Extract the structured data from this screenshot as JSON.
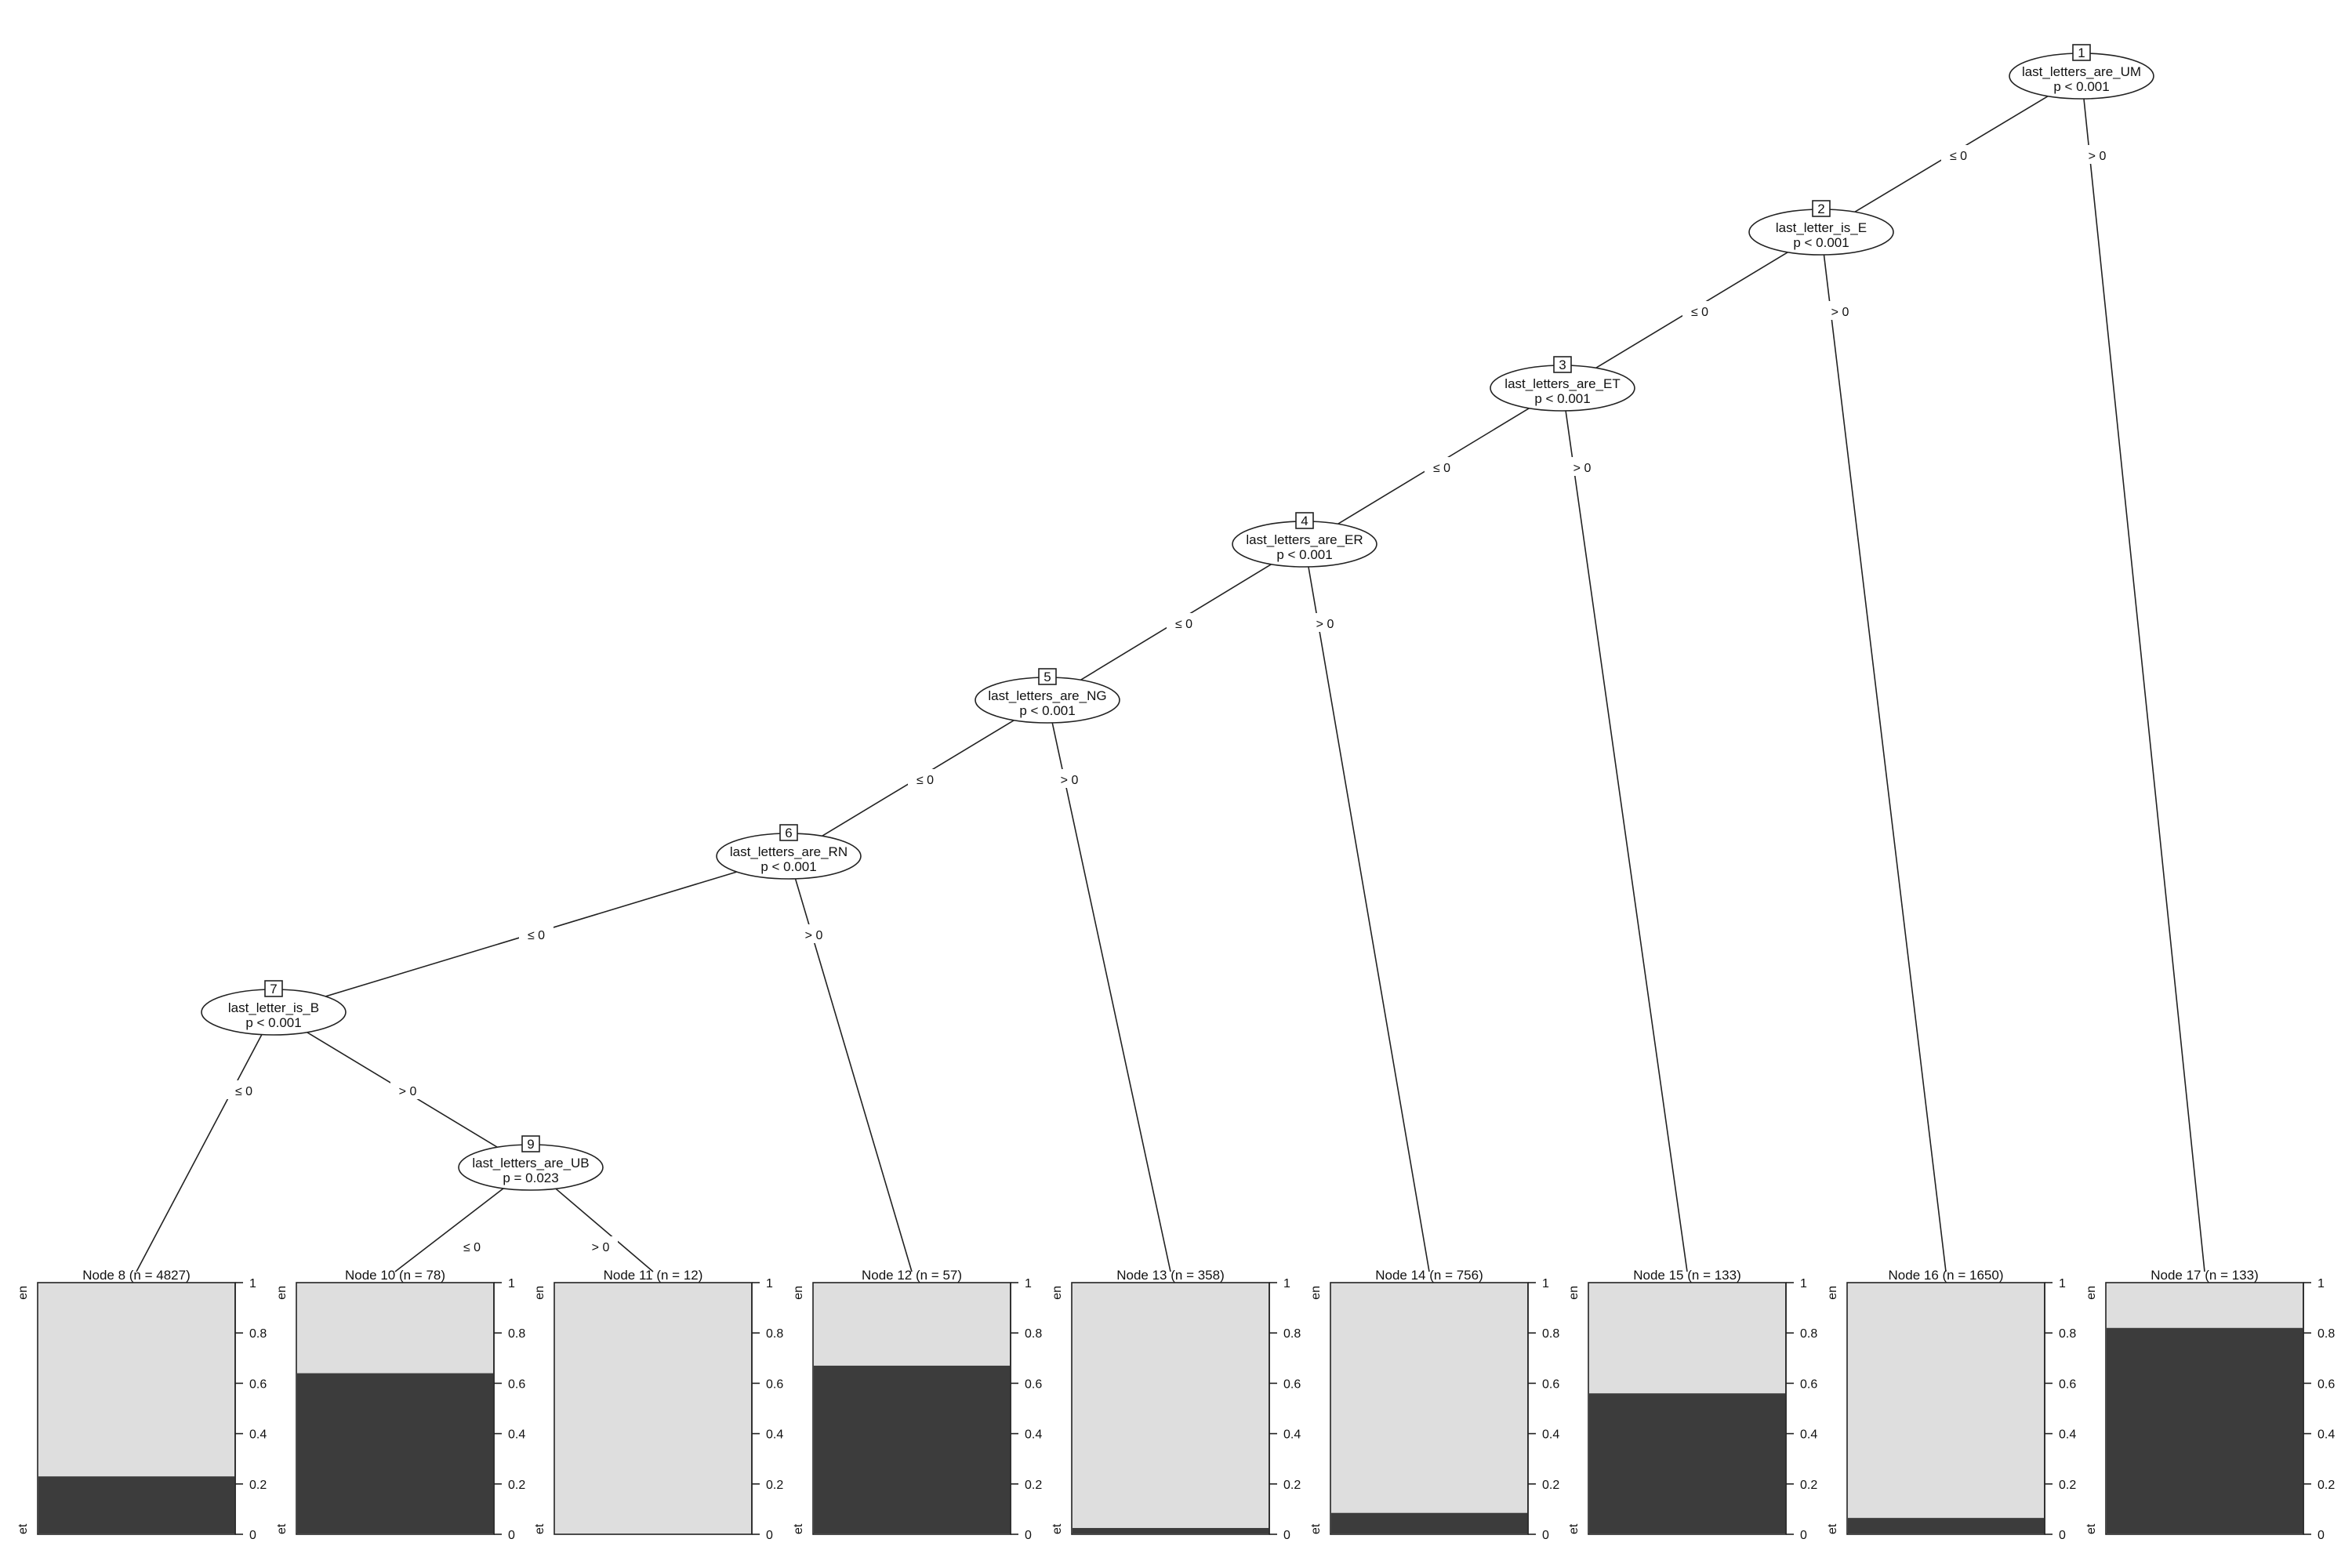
{
  "inner_nodes": [
    {
      "id": "1",
      "variable": "last_letters_are_UM",
      "p": "p < 0.001"
    },
    {
      "id": "2",
      "variable": "last_letter_is_E",
      "p": "p < 0.001"
    },
    {
      "id": "3",
      "variable": "last_letters_are_ET",
      "p": "p < 0.001"
    },
    {
      "id": "4",
      "variable": "last_letters_are_ER",
      "p": "p < 0.001"
    },
    {
      "id": "5",
      "variable": "last_letters_are_NG",
      "p": "p < 0.001"
    },
    {
      "id": "6",
      "variable": "last_letters_are_RN",
      "p": "p < 0.001"
    },
    {
      "id": "7",
      "variable": "last_letter_is_B",
      "p": "p < 0.001"
    },
    {
      "id": "9",
      "variable": "last_letters_are_UB",
      "p": "p = 0.023"
    }
  ],
  "edge_labels": {
    "le": "≤ 0",
    "gt": "> 0"
  },
  "terminal_nodes": [
    {
      "title": "Node 8 (n = 4827)",
      "et_fraction": 0.23
    },
    {
      "title": "Node 10 (n = 78)",
      "et_fraction": 0.64
    },
    {
      "title": "Node 11 (n = 12)",
      "et_fraction": 0.0
    },
    {
      "title": "Node 12 (n = 57)",
      "et_fraction": 0.67
    },
    {
      "title": "Node 13 (n = 358)",
      "et_fraction": 0.025
    },
    {
      "title": "Node 14 (n = 756)",
      "et_fraction": 0.085
    },
    {
      "title": "Node 15 (n = 133)",
      "et_fraction": 0.56
    },
    {
      "title": "Node 16 (n = 1650)",
      "et_fraction": 0.065
    },
    {
      "title": "Node 17 (n = 133)",
      "et_fraction": 0.82
    }
  ],
  "class_labels": {
    "top": "en",
    "bottom": "et"
  },
  "axis_ticks": [
    "0",
    "0.2",
    "0.4",
    "0.6",
    "0.8",
    "1"
  ],
  "colors": {
    "et": "#3c3c3c",
    "en": "#dedede"
  }
}
